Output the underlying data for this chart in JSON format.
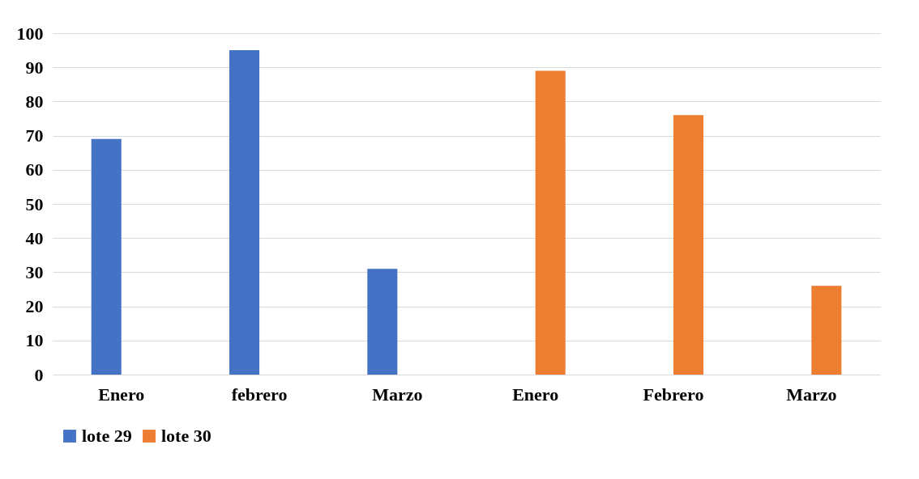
{
  "chart_data": {
    "type": "bar",
    "categories": [
      "Enero",
      "febrero",
      "Marzo",
      "Enero",
      "Febrero",
      "Marzo"
    ],
    "series": [
      {
        "name": "lote 29",
        "color": "#4472c4",
        "values": [
          69,
          95,
          31,
          null,
          null,
          null
        ]
      },
      {
        "name": "lote 30",
        "color": "#ed7d31",
        "values": [
          null,
          null,
          null,
          89,
          76,
          26
        ]
      }
    ],
    "ylim": [
      0,
      100
    ],
    "yticks": [
      0,
      10,
      20,
      30,
      40,
      50,
      60,
      70,
      80,
      90,
      100
    ],
    "grid": "y",
    "legend": "bottom"
  }
}
